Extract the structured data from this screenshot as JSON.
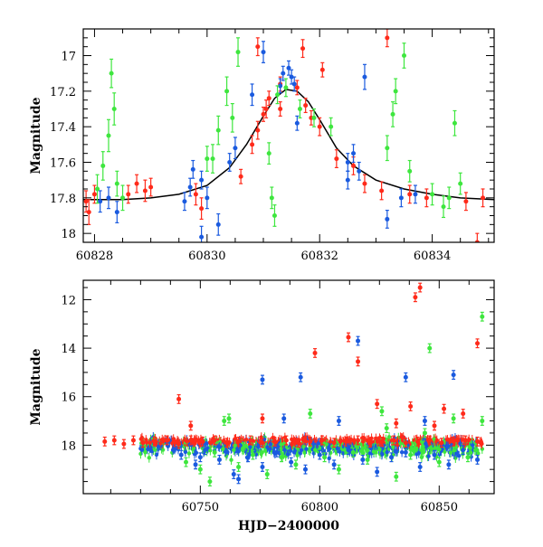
{
  "chart_data": [
    {
      "type": "scatter",
      "panel": "top",
      "title": "",
      "xlabel": "",
      "ylabel": "Magnitude",
      "xlim": [
        60827.8,
        60835.1
      ],
      "ylim": [
        18.05,
        16.85
      ],
      "y_inverted": true,
      "xticks": [
        60828,
        60830,
        60832,
        60834
      ],
      "yticks": [
        17,
        17.2,
        17.4,
        17.6,
        17.8,
        18
      ],
      "xtick_labels": [
        "60828",
        "60830",
        "60832",
        "60834"
      ],
      "ytick_labels": [
        "17",
        "17.2",
        "17.4",
        "17.6",
        "17.8",
        "18"
      ],
      "grid": false,
      "legend": "none",
      "model_curve": {
        "color": "#000000",
        "points": [
          [
            60827.8,
            17.81
          ],
          [
            60828.5,
            17.81
          ],
          [
            60829.0,
            17.8
          ],
          [
            60829.5,
            17.78
          ],
          [
            60830.0,
            17.73
          ],
          [
            60830.4,
            17.63
          ],
          [
            60830.7,
            17.5
          ],
          [
            60831.0,
            17.34
          ],
          [
            60831.2,
            17.24
          ],
          [
            60831.4,
            17.19
          ],
          [
            60831.6,
            17.2
          ],
          [
            60831.8,
            17.26
          ],
          [
            60832.0,
            17.36
          ],
          [
            60832.3,
            17.52
          ],
          [
            60832.6,
            17.62
          ],
          [
            60833.0,
            17.7
          ],
          [
            60833.5,
            17.75
          ],
          [
            60834.0,
            17.78
          ],
          [
            60834.5,
            17.8
          ],
          [
            60835.1,
            17.81
          ]
        ]
      },
      "series": [
        {
          "color": "#ff2a1a",
          "points": [
            [
              60827.85,
              17.82,
              0.06
            ],
            [
              60827.9,
              17.88,
              0.07
            ],
            [
              60828.0,
              17.78,
              0.05
            ],
            [
              60828.6,
              17.78,
              0.05
            ],
            [
              60828.75,
              17.72,
              0.05
            ],
            [
              60828.9,
              17.76,
              0.06
            ],
            [
              60829.0,
              17.74,
              0.05
            ],
            [
              60829.8,
              17.78,
              0.06
            ],
            [
              60829.9,
              17.86,
              0.06
            ],
            [
              60830.8,
              17.5,
              0.05
            ],
            [
              60830.9,
              17.42,
              0.05
            ],
            [
              60831.0,
              17.33,
              0.04
            ],
            [
              60831.05,
              17.3,
              0.05
            ],
            [
              60831.1,
              17.24,
              0.04
            ],
            [
              60831.3,
              17.16,
              0.04
            ],
            [
              60831.6,
              17.18,
              0.04
            ],
            [
              60831.75,
              17.28,
              0.04
            ],
            [
              60831.85,
              17.35,
              0.04
            ],
            [
              60832.0,
              17.4,
              0.05
            ],
            [
              60832.3,
              17.58,
              0.05
            ],
            [
              60832.6,
              17.62,
              0.05
            ],
            [
              60832.8,
              17.72,
              0.05
            ],
            [
              60833.1,
              17.76,
              0.05
            ],
            [
              60833.6,
              17.78,
              0.05
            ],
            [
              60833.9,
              17.8,
              0.05
            ],
            [
              60834.6,
              17.82,
              0.05
            ],
            [
              60834.9,
              17.8,
              0.05
            ],
            [
              60830.9,
              16.95,
              0.05
            ],
            [
              60831.7,
              16.96,
              0.05
            ],
            [
              60832.05,
              17.08,
              0.04
            ],
            [
              60833.2,
              16.9,
              0.05
            ],
            [
              60834.8,
              18.05,
              0.05
            ],
            [
              60830.6,
              17.68,
              0.04
            ],
            [
              60831.3,
              17.3,
              0.04
            ]
          ]
        },
        {
          "color": "#1a5adf",
          "points": [
            [
              60828.1,
              17.82,
              0.06
            ],
            [
              60828.25,
              17.8,
              0.06
            ],
            [
              60828.4,
              17.88,
              0.06
            ],
            [
              60829.6,
              17.82,
              0.05
            ],
            [
              60829.7,
              17.74,
              0.05
            ],
            [
              60829.75,
              17.64,
              0.05
            ],
            [
              60829.9,
              17.7,
              0.05
            ],
            [
              60830.0,
              17.8,
              0.06
            ],
            [
              60830.4,
              17.6,
              0.05
            ],
            [
              60830.2,
              17.95,
              0.06
            ],
            [
              60831.3,
              17.17,
              0.04
            ],
            [
              60831.35,
              17.1,
              0.04
            ],
            [
              60831.45,
              17.07,
              0.04
            ],
            [
              60831.5,
              17.12,
              0.04
            ],
            [
              60831.55,
              17.16,
              0.04
            ],
            [
              60831.0,
              16.98,
              0.06
            ],
            [
              60831.6,
              17.38,
              0.04
            ],
            [
              60832.5,
              17.6,
              0.05
            ],
            [
              60832.6,
              17.55,
              0.05
            ],
            [
              60832.7,
              17.65,
              0.05
            ],
            [
              60833.45,
              17.8,
              0.05
            ],
            [
              60833.7,
              17.78,
              0.05
            ],
            [
              60832.8,
              17.12,
              0.07
            ],
            [
              60830.8,
              17.22,
              0.06
            ],
            [
              60832.5,
              17.7,
              0.05
            ],
            [
              60833.2,
              17.92,
              0.05
            ],
            [
              60830.5,
              17.52,
              0.06
            ],
            [
              60829.9,
              18.02,
              0.06
            ]
          ]
        },
        {
          "color": "#3ee63e",
          "points": [
            [
              60828.05,
              17.75,
              0.08
            ],
            [
              60828.15,
              17.62,
              0.08
            ],
            [
              60828.25,
              17.45,
              0.09
            ],
            [
              60828.35,
              17.3,
              0.09
            ],
            [
              60828.3,
              17.1,
              0.08
            ],
            [
              60828.4,
              17.72,
              0.07
            ],
            [
              60828.5,
              17.8,
              0.07
            ],
            [
              60830.1,
              17.58,
              0.08
            ],
            [
              60830.2,
              17.42,
              0.08
            ],
            [
              60830.35,
              17.2,
              0.08
            ],
            [
              60830.45,
              17.35,
              0.08
            ],
            [
              60830.0,
              17.58,
              0.07
            ],
            [
              60830.55,
              16.98,
              0.08
            ],
            [
              60831.1,
              17.55,
              0.06
            ],
            [
              60831.15,
              17.8,
              0.06
            ],
            [
              60831.2,
              17.9,
              0.06
            ],
            [
              60831.25,
              17.22,
              0.05
            ],
            [
              60831.4,
              17.18,
              0.05
            ],
            [
              60831.65,
              17.3,
              0.05
            ],
            [
              60831.9,
              17.35,
              0.05
            ],
            [
              60832.2,
              17.4,
              0.05
            ],
            [
              60833.2,
              17.52,
              0.07
            ],
            [
              60833.3,
              17.33,
              0.07
            ],
            [
              60833.35,
              17.2,
              0.07
            ],
            [
              60833.5,
              17.0,
              0.07
            ],
            [
              60833.6,
              17.65,
              0.06
            ],
            [
              60834.0,
              17.78,
              0.06
            ],
            [
              60834.2,
              17.85,
              0.06
            ],
            [
              60834.4,
              17.38,
              0.07
            ],
            [
              60834.5,
              17.72,
              0.06
            ],
            [
              60834.3,
              17.8,
              0.06
            ]
          ]
        }
      ]
    },
    {
      "type": "scatter",
      "panel": "bottom",
      "title": "",
      "xlabel": "HJD−2400000",
      "ylabel": "Magnitude",
      "xlim": [
        60701,
        60873
      ],
      "ylim": [
        20.0,
        11.2
      ],
      "y_inverted": true,
      "xticks": [
        60750,
        60800,
        60850
      ],
      "yticks": [
        12,
        14,
        16,
        18
      ],
      "xtick_labels": [
        "60750",
        "60800",
        "60850"
      ],
      "ytick_labels": [
        "12",
        "14",
        "16",
        "18"
      ],
      "grid": false,
      "legend": "none",
      "series": [
        {
          "color": "#ff2a1a",
          "points": [
            [
              60710,
              17.85
            ],
            [
              60714,
              17.8
            ],
            [
              60718,
              17.95
            ],
            [
              60722,
              17.8
            ],
            [
              60726,
              17.9
            ],
            [
              60731,
              17.85
            ],
            [
              60736,
              17.8
            ],
            [
              60741,
              17.95
            ],
            [
              60746,
              17.8
            ],
            [
              60751,
              17.85
            ],
            [
              60756,
              17.8
            ],
            [
              60761,
              17.9
            ],
            [
              60766,
              17.85
            ],
            [
              60771,
              17.8
            ],
            [
              60776,
              17.9
            ],
            [
              60781,
              17.85
            ],
            [
              60786,
              17.8
            ],
            [
              60791,
              17.9
            ],
            [
              60796,
              17.85
            ],
            [
              60801,
              17.8
            ],
            [
              60806,
              17.9
            ],
            [
              60811,
              17.85
            ],
            [
              60816,
              17.8
            ],
            [
              60821,
              17.9
            ],
            [
              60826,
              17.85
            ],
            [
              60831,
              17.8
            ],
            [
              60836,
              17.9
            ],
            [
              60841,
              17.85
            ],
            [
              60846,
              17.8
            ],
            [
              60851,
              17.9
            ],
            [
              60856,
              17.85
            ],
            [
              60861,
              17.8
            ],
            [
              60866,
              17.85
            ],
            [
              60741,
              16.1
            ],
            [
              60746,
              17.2
            ],
            [
              60776,
              16.9
            ],
            [
              60798,
              14.2
            ],
            [
              60812,
              13.55
            ],
            [
              60816,
              14.55
            ],
            [
              60824,
              16.3
            ],
            [
              60838,
              16.4
            ],
            [
              60842,
              11.5
            ],
            [
              60840,
              11.9
            ],
            [
              60852,
              16.5
            ],
            [
              60866,
              13.8
            ],
            [
              60860,
              16.7
            ],
            [
              60832,
              17.1
            ],
            [
              60848,
              17.2
            ]
          ]
        },
        {
          "color": "#1a5adf",
          "points": [
            [
              60742,
              18.4
            ],
            [
              60748,
              18.8
            ],
            [
              60752,
              18.2
            ],
            [
              60758,
              18.6
            ],
            [
              60764,
              19.2
            ],
            [
              60770,
              18.5
            ],
            [
              60776,
              18.9
            ],
            [
              60782,
              18.3
            ],
            [
              60788,
              18.7
            ],
            [
              60794,
              19.0
            ],
            [
              60800,
              18.4
            ],
            [
              60806,
              18.8
            ],
            [
              60812,
              18.2
            ],
            [
              60818,
              18.6
            ],
            [
              60824,
              19.1
            ],
            [
              60830,
              18.5
            ],
            [
              60836,
              18.3
            ],
            [
              60842,
              18.9
            ],
            [
              60848,
              18.4
            ],
            [
              60854,
              18.8
            ],
            [
              60860,
              18.2
            ],
            [
              60866,
              18.6
            ],
            [
              60776,
              15.3
            ],
            [
              60785,
              16.9
            ],
            [
              60792,
              15.2
            ],
            [
              60808,
              17.0
            ],
            [
              60816,
              13.7
            ],
            [
              60836,
              15.2
            ],
            [
              60856,
              15.1
            ],
            [
              60844,
              17.0
            ],
            [
              60766,
              19.4
            ],
            [
              60750,
              18.5
            ]
          ]
        },
        {
          "color": "#3ee63e",
          "points": [
            [
              60744,
              18.7
            ],
            [
              60750,
              19.0
            ],
            [
              60756,
              18.3
            ],
            [
              60762,
              16.9
            ],
            [
              60766,
              18.9
            ],
            [
              60772,
              18.4
            ],
            [
              60778,
              19.2
            ],
            [
              60784,
              18.5
            ],
            [
              60790,
              18.8
            ],
            [
              60796,
              16.7
            ],
            [
              60802,
              18.5
            ],
            [
              60808,
              19.0
            ],
            [
              60814,
              18.3
            ],
            [
              60820,
              18.6
            ],
            [
              60826,
              16.6
            ],
            [
              60832,
              19.3
            ],
            [
              60838,
              18.4
            ],
            [
              60844,
              17.5
            ],
            [
              60850,
              18.7
            ],
            [
              60856,
              16.9
            ],
            [
              60862,
              18.5
            ],
            [
              60868,
              12.7
            ],
            [
              60846,
              14.0
            ],
            [
              60828,
              17.3
            ],
            [
              60760,
              17.0
            ],
            [
              60868,
              17.0
            ],
            [
              60754,
              19.5
            ]
          ]
        }
      ],
      "dense_baseline": {
        "x_start": 60725,
        "x_end": 60868,
        "y": 17.85
      }
    }
  ]
}
